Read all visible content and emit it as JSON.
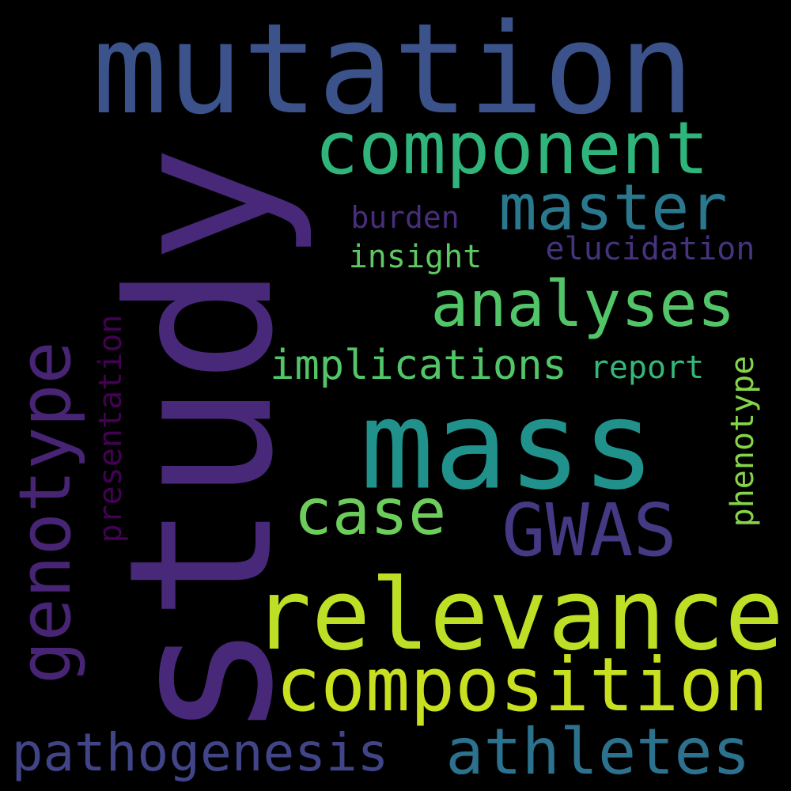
{
  "background": "#000000",
  "words": [
    {
      "key": "mutation",
      "text": "mutation",
      "color": "#3b528b"
    },
    {
      "key": "study",
      "text": "study",
      "color": "#482878"
    },
    {
      "key": "component",
      "text": "component",
      "color": "#2fb47c"
    },
    {
      "key": "master",
      "text": "master",
      "color": "#2a788e"
    },
    {
      "key": "burden",
      "text": "burden",
      "color": "#472d7b"
    },
    {
      "key": "elucidation",
      "text": "elucidation",
      "color": "#46337e"
    },
    {
      "key": "insight",
      "text": "insight",
      "color": "#5ec962"
    },
    {
      "key": "analyses",
      "text": "analyses",
      "color": "#52c569"
    },
    {
      "key": "implications",
      "text": "implications",
      "color": "#52c569"
    },
    {
      "key": "report",
      "text": "report",
      "color": "#35b779"
    },
    {
      "key": "genotype",
      "text": "genotype",
      "color": "#482475"
    },
    {
      "key": "presentation",
      "text": "presentation",
      "color": "#440154"
    },
    {
      "key": "mass",
      "text": "mass",
      "color": "#21918c"
    },
    {
      "key": "phenotype",
      "text": "phenotype",
      "color": "#86d549"
    },
    {
      "key": "case",
      "text": "case",
      "color": "#6ccd5a"
    },
    {
      "key": "gwas",
      "text": "GWAS",
      "color": "#443983"
    },
    {
      "key": "relevance",
      "text": "relevance",
      "color": "#bddf26"
    },
    {
      "key": "composition",
      "text": "composition",
      "color": "#c8e020"
    },
    {
      "key": "pathogenesis",
      "text": "pathogenesis",
      "color": "#414487"
    },
    {
      "key": "athletes",
      "text": "athletes",
      "color": "#2c728e"
    }
  ]
}
